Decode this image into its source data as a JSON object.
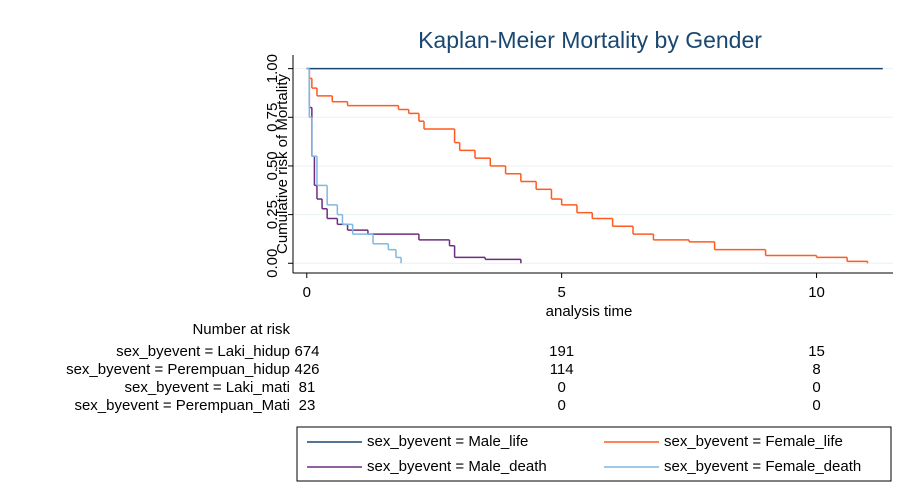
{
  "chart_data": {
    "type": "line",
    "drawstyle": "steps-post",
    "title": "Kaplan-Meier Mortality by Gender",
    "x_label": "analysis time",
    "y_label": "Cumulative risk of Mortality",
    "xlim": [
      -0.27,
      11.5
    ],
    "ylim": [
      -0.05,
      1.07
    ],
    "xticks": [
      0,
      5,
      10
    ],
    "yticks": [
      {
        "value": 0,
        "label": "0.00"
      },
      {
        "value": 0.25,
        "label": "0.25"
      },
      {
        "value": 0.5,
        "label": "0.50"
      },
      {
        "value": 0.75,
        "label": "0.75"
      },
      {
        "value": 1,
        "label": "1.00"
      }
    ],
    "grid": true,
    "series": [
      {
        "name": "sex_byevent = Male_life",
        "color": "#1a476f",
        "x": [
          0,
          11.3
        ],
        "values": [
          1,
          1
        ]
      },
      {
        "name": "sex_byevent = Female_life",
        "color": "#ff5a1f",
        "x": [
          0,
          0.05,
          0.1,
          0.2,
          0.5,
          0.8,
          1.8,
          2.0,
          2.2,
          2.3,
          2.9,
          3.0,
          3.3,
          3.6,
          3.9,
          4.2,
          4.5,
          4.8,
          5.0,
          5.3,
          5.6,
          6.0,
          6.4,
          6.8,
          7.5,
          8.0,
          9.0,
          10.0,
          10.6,
          11.0
        ],
        "values": [
          1,
          0.95,
          0.9,
          0.86,
          0.83,
          0.81,
          0.79,
          0.77,
          0.73,
          0.69,
          0.62,
          0.58,
          0.54,
          0.5,
          0.46,
          0.42,
          0.38,
          0.33,
          0.3,
          0.26,
          0.23,
          0.19,
          0.15,
          0.12,
          0.11,
          0.07,
          0.04,
          0.03,
          0.01,
          0
        ]
      },
      {
        "name": "sex_byevent = Male_death",
        "color": "#6e2c80",
        "x": [
          0,
          0.05,
          0.1,
          0.15,
          0.2,
          0.3,
          0.4,
          0.6,
          0.8,
          1.2,
          2.2,
          2.8,
          2.9,
          3.5,
          4.2
        ],
        "values": [
          1,
          0.8,
          0.55,
          0.4,
          0.33,
          0.28,
          0.23,
          0.2,
          0.17,
          0.15,
          0.12,
          0.09,
          0.03,
          0.02,
          0
        ]
      },
      {
        "name": "sex_byevent = Female_death",
        "color": "#7fb8e0",
        "x": [
          0,
          0.05,
          0.1,
          0.2,
          0.4,
          0.6,
          0.7,
          0.9,
          1.3,
          1.6,
          1.75,
          1.85
        ],
        "values": [
          1,
          0.75,
          0.55,
          0.4,
          0.3,
          0.25,
          0.2,
          0.15,
          0.1,
          0.07,
          0.03,
          0
        ]
      }
    ]
  },
  "risk_table": {
    "title": "Number at risk",
    "rows": [
      {
        "label": "sex_byevent = Laki_hidup",
        "counts": [
          674,
          191,
          15
        ]
      },
      {
        "label": "sex_byevent = Perempuan_hidup",
        "counts": [
          426,
          114,
          8
        ]
      },
      {
        "label": "sex_byevent = Laki_mati",
        "counts": [
          81,
          0,
          0
        ]
      },
      {
        "label": "sex_byevent = Perempuan_Mati",
        "counts": [
          23,
          0,
          0
        ]
      }
    ]
  }
}
